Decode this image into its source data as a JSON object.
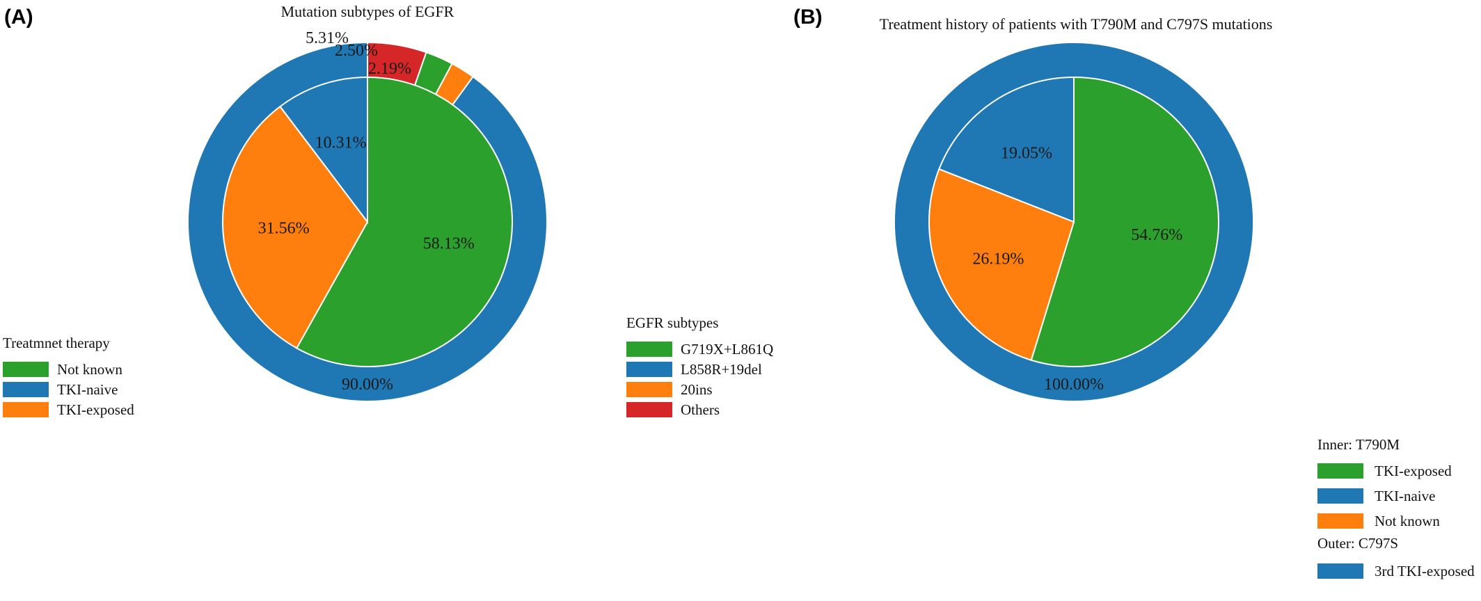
{
  "colors": {
    "green": "#2ca02c",
    "blue": "#1f77b4",
    "orange": "#ff7f0e",
    "red": "#d62728"
  },
  "chart_data": [
    {
      "type": "pie",
      "panel_label": "(A)",
      "title": "Mutation subtypes of EGFR",
      "inner": {
        "legend_title": "Treatmnet therapy",
        "slices": [
          {
            "name": "Not known",
            "value": 58.13,
            "label": "58.13%",
            "color": "#2ca02c"
          },
          {
            "name": "TKI-exposed",
            "value": 31.56,
            "label": "31.56%",
            "color": "#ff7f0e"
          },
          {
            "name": "TKI-naive",
            "value": 10.31,
            "label": "10.31%",
            "color": "#1f77b4"
          }
        ]
      },
      "outer": {
        "legend_title": "EGFR subtypes",
        "slices": [
          {
            "name": "Others",
            "value": 5.31,
            "label": "5.31%",
            "color": "#d62728"
          },
          {
            "name": "G719X+L861Q",
            "value": 2.5,
            "label": "2.50%",
            "color": "#2ca02c"
          },
          {
            "name": "20ins",
            "value": 2.19,
            "label": "2.19%",
            "color": "#ff7f0e"
          },
          {
            "name": "L858R+19del",
            "value": 90.0,
            "label": "90.00%",
            "color": "#1f77b4"
          }
        ]
      },
      "legend_inner": [
        {
          "name": "Not known",
          "color": "#2ca02c"
        },
        {
          "name": "TKI-naive",
          "color": "#1f77b4"
        },
        {
          "name": "TKI-exposed",
          "color": "#ff7f0e"
        }
      ],
      "legend_outer": [
        {
          "name": "G719X+L861Q",
          "color": "#2ca02c"
        },
        {
          "name": "L858R+19del",
          "color": "#1f77b4"
        },
        {
          "name": "20ins",
          "color": "#ff7f0e"
        },
        {
          "name": "Others",
          "color": "#d62728"
        }
      ]
    },
    {
      "type": "pie",
      "panel_label": "(B)",
      "title": "Treatment history of patients with T790M and C797S mutations",
      "inner": {
        "legend_title": "Inner: T790M",
        "slices": [
          {
            "name": "TKI-exposed",
            "value": 54.76,
            "label": "54.76%",
            "color": "#2ca02c"
          },
          {
            "name": "Not known",
            "value": 26.19,
            "label": "26.19%",
            "color": "#ff7f0e"
          },
          {
            "name": "TKI-naive",
            "value": 19.05,
            "label": "19.05%",
            "color": "#1f77b4"
          }
        ]
      },
      "outer": {
        "legend_title": "Outer: C797S",
        "slices": [
          {
            "name": "3rd TKI-exposed",
            "value": 100.0,
            "label": "100.00%",
            "color": "#1f77b4"
          }
        ]
      },
      "legend_inner": [
        {
          "name": "TKI-exposed",
          "color": "#2ca02c"
        },
        {
          "name": "TKI-naive",
          "color": "#1f77b4"
        },
        {
          "name": "Not known",
          "color": "#ff7f0e"
        }
      ],
      "legend_outer": [
        {
          "name": "3rd TKI-exposed",
          "color": "#1f77b4"
        }
      ]
    }
  ]
}
